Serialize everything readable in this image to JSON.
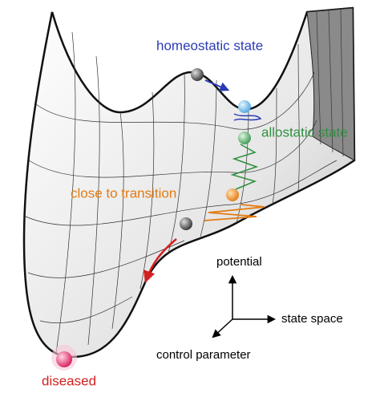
{
  "states": [
    {
      "label": "homeostatic state"
    },
    {
      "label": "allostatic state"
    },
    {
      "label": "close to transition"
    },
    {
      "label": "diseased"
    }
  ],
  "axes": {
    "vertical": "potential",
    "horizontal": "state space",
    "depth": "control parameter"
  }
}
